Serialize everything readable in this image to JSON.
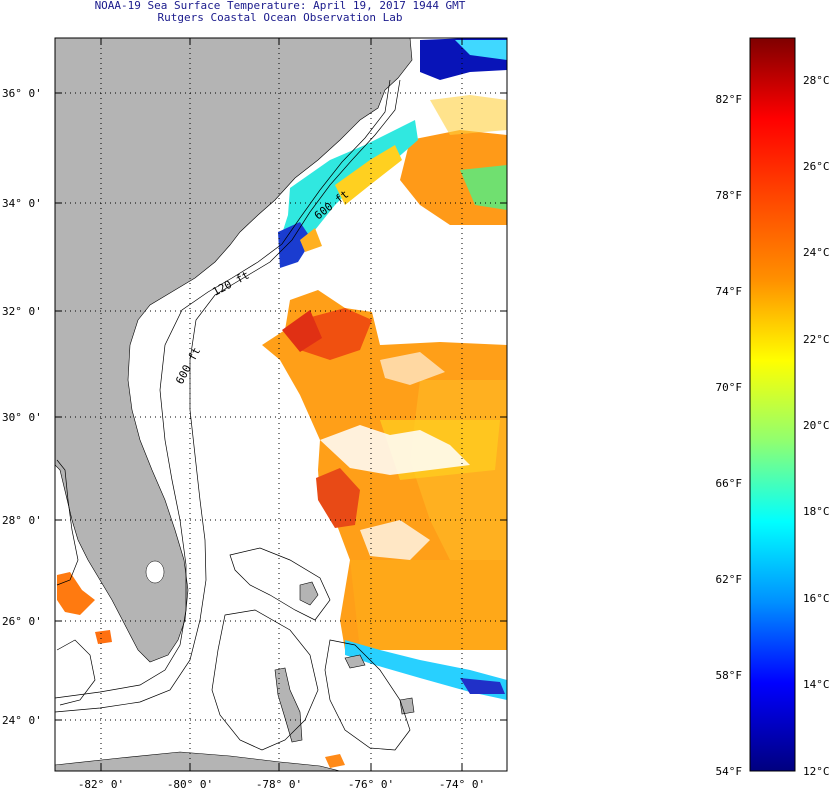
{
  "title": {
    "line1": "NOAA-19 Sea Surface Temperature:  April 19, 2017 1944 GMT",
    "line2": "Rutgers Coastal Ocean Observation Lab"
  },
  "map": {
    "lat_labels": [
      "36° 0'",
      "34° 0'",
      "32° 0'",
      "30° 0'",
      "28° 0'",
      "26° 0'",
      "24° 0'"
    ],
    "lon_labels": [
      "-82° 0'",
      "-80° 0'",
      "-78° 0'",
      "-76° 0'",
      "-74° 0'"
    ],
    "contour_labels": [
      "120 ft",
      "600 ft",
      "600 ft"
    ],
    "colors": {
      "land": "#b4b4b4",
      "frame": "#000000",
      "ocean": "#ffffff"
    }
  },
  "colorbar": {
    "fahrenheit_labels": [
      "82°F",
      "78°F",
      "74°F",
      "70°F",
      "66°F",
      "62°F",
      "58°F",
      "54°F"
    ],
    "celsius_labels": [
      "28°C",
      "26°C",
      "24°C",
      "22°C",
      "20°C",
      "18°C",
      "16°C",
      "14°C",
      "12°C"
    ],
    "colors_top_to_bottom": [
      "#7f0000",
      "#ff0000",
      "#ff7f00",
      "#ffff00",
      "#7fff7f",
      "#00ffff",
      "#007fff",
      "#0000ff",
      "#00007f"
    ]
  }
}
